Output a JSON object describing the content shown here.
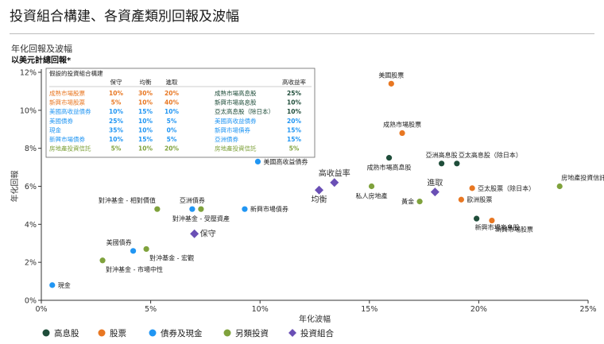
{
  "page": {
    "title": "投資組合構建、各資產類別回報及波幅",
    "subtitle_line1": "年化回報及波幅",
    "subtitle_line2": "以美元計總回報*"
  },
  "colors": {
    "high_income": "#1f4d3a",
    "equity": "#e87722",
    "bonds_cash": "#2196f3",
    "alternatives": "#7fa23c",
    "portfolio": "#6a4fb5",
    "grid": "#dddddd",
    "axis": "#333333"
  },
  "legend": [
    {
      "key": "high_income",
      "label": "高息股",
      "marker": "circle"
    },
    {
      "key": "equity",
      "label": "股票",
      "marker": "circle"
    },
    {
      "key": "bonds_cash",
      "label": "債券及現金",
      "marker": "circle"
    },
    {
      "key": "alternatives",
      "label": "另類投資",
      "marker": "circle"
    },
    {
      "key": "portfolio",
      "label": "投資組合",
      "marker": "diamond"
    }
  ],
  "table": {
    "title": "假設的投資組合構建",
    "headers": [
      "",
      "保守",
      "均衡",
      "進取",
      "",
      "高收益率"
    ],
    "rows": [
      {
        "cat": "equity",
        "name": "成熟市場股票",
        "v1": "10%",
        "v2": "30%",
        "v3": "20%",
        "name2": "成熟市場高息股",
        "v4": "25%",
        "cat2": "high_income"
      },
      {
        "cat": "equity",
        "name": "新興市場股票",
        "v1": "5%",
        "v2": "10%",
        "v3": "40%",
        "name2": "新興市場高息股",
        "v4": "10%",
        "cat2": "high_income"
      },
      {
        "cat": "bonds_cash",
        "name": "美國高收益債券",
        "v1": "10%",
        "v2": "15%",
        "v3": "10%",
        "name2": "亞太高息股（除日本）",
        "v4": "10%",
        "cat2": "high_income"
      },
      {
        "cat": "bonds_cash",
        "name": "美國債券",
        "v1": "25%",
        "v2": "10%",
        "v3": "5%",
        "name2": "美國高收益債券",
        "v4": "20%",
        "cat2": "bonds_cash"
      },
      {
        "cat": "bonds_cash",
        "name": "現金",
        "v1": "35%",
        "v2": "10%",
        "v3": "0%",
        "name2": "新興市場債券",
        "v4": "15%",
        "cat2": "bonds_cash"
      },
      {
        "cat": "bonds_cash",
        "name": "新興市場債券",
        "v1": "10%",
        "v2": "15%",
        "v3": "5%",
        "name2": "亞洲債券",
        "v4": "15%",
        "cat2": "bonds_cash"
      },
      {
        "cat": "alternatives",
        "name": "房地產投資信託",
        "v1": "5%",
        "v2": "10%",
        "v3": "20%",
        "name2": "房地產投資信託",
        "v4": "5%",
        "cat2": "alternatives"
      }
    ]
  },
  "chart_data": {
    "type": "scatter",
    "xlabel": "年化波幅",
    "ylabel": "年化回報",
    "xlim": [
      0,
      25
    ],
    "ylim": [
      0,
      12
    ],
    "x_ticks": [
      "0%",
      "5%",
      "10%",
      "15%",
      "20%",
      "25%"
    ],
    "y_ticks": [
      "0%",
      "2%",
      "4%",
      "6%",
      "8%",
      "10%",
      "12%"
    ],
    "grid": false,
    "legend_position": "bottom",
    "points": [
      {
        "label": "現金",
        "cat": "bonds_cash",
        "x": 0.5,
        "y": 0.8,
        "anchor": "right"
      },
      {
        "label": "對沖基金 - 市場中性",
        "cat": "alternatives",
        "x": 2.8,
        "y": 2.1,
        "anchor": "below-right"
      },
      {
        "label": "美國債券",
        "cat": "bonds_cash",
        "x": 4.2,
        "y": 2.6,
        "anchor": "above-left"
      },
      {
        "label": "對沖基金 - 宏觀",
        "cat": "alternatives",
        "x": 4.8,
        "y": 2.7,
        "anchor": "below-right"
      },
      {
        "label": "對沖基金 - 相對價值",
        "cat": "alternatives",
        "x": 5.3,
        "y": 4.8,
        "anchor": "above-left"
      },
      {
        "label": "亞洲債券",
        "cat": "bonds_cash",
        "x": 6.9,
        "y": 4.8,
        "anchor": "above"
      },
      {
        "label": "對沖基金 - 受壓資產",
        "cat": "alternatives",
        "x": 7.3,
        "y": 4.8,
        "anchor": "below"
      },
      {
        "label": "新興市場債券",
        "cat": "bonds_cash",
        "x": 9.3,
        "y": 4.8,
        "anchor": "right"
      },
      {
        "label": "美國高收益債券",
        "cat": "bonds_cash",
        "x": 9.9,
        "y": 7.3,
        "anchor": "right"
      },
      {
        "label": "私人房地產",
        "cat": "alternatives",
        "x": 15.1,
        "y": 6.0,
        "anchor": "below"
      },
      {
        "label": "美國股票",
        "cat": "equity",
        "x": 16.0,
        "y": 11.4,
        "anchor": "above"
      },
      {
        "label": "成熟市場股票",
        "cat": "equity",
        "x": 16.5,
        "y": 8.8,
        "anchor": "above"
      },
      {
        "label": "成熟市場高息股",
        "cat": "high_income",
        "x": 15.9,
        "y": 7.5,
        "anchor": "below"
      },
      {
        "label": "黃金",
        "cat": "alternatives",
        "x": 17.3,
        "y": 5.2,
        "anchor": "left"
      },
      {
        "label": "亞洲高息股",
        "cat": "high_income",
        "x": 18.3,
        "y": 7.2,
        "anchor": "above"
      },
      {
        "label": "亞太高息股（除日本）",
        "cat": "high_income",
        "x": 19.0,
        "y": 7.2,
        "anchor": "above-right"
      },
      {
        "label": "亞太股票（除日本）",
        "cat": "equity",
        "x": 19.7,
        "y": 5.9,
        "anchor": "right"
      },
      {
        "label": "歐洲股票",
        "cat": "equity",
        "x": 19.2,
        "y": 5.3,
        "anchor": "right"
      },
      {
        "label": "新興市場高息股",
        "cat": "high_income",
        "x": 19.9,
        "y": 4.3,
        "anchor": "below-left"
      },
      {
        "label": "新興市場股票",
        "cat": "equity",
        "x": 20.6,
        "y": 4.2,
        "anchor": "below-right"
      },
      {
        "label": "房地產投資信託",
        "cat": "alternatives",
        "x": 23.7,
        "y": 6.0,
        "anchor": "above-right"
      }
    ],
    "portfolios": [
      {
        "label": "保守",
        "cat": "portfolio",
        "x": 7.0,
        "y": 3.5,
        "anchor": "right"
      },
      {
        "label": "均衡",
        "cat": "portfolio",
        "x": 12.7,
        "y": 5.8,
        "anchor": "below"
      },
      {
        "label": "高收益率",
        "cat": "portfolio",
        "x": 13.4,
        "y": 6.2,
        "anchor": "above"
      },
      {
        "label": "進取",
        "cat": "portfolio",
        "x": 18.0,
        "y": 5.7,
        "anchor": "above"
      }
    ]
  }
}
